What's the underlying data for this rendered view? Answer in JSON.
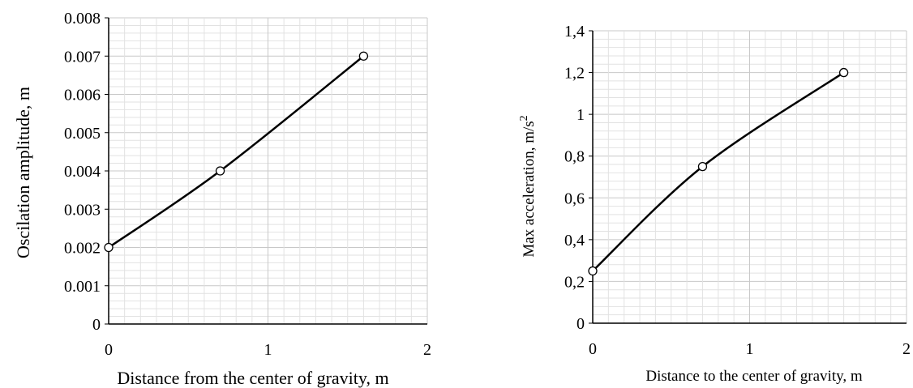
{
  "chart_data": [
    {
      "type": "line",
      "title": "",
      "xlabel": "Distance from the center of gravity, m",
      "ylabel": "Oscilation amplitude, m",
      "xlim": [
        0,
        2
      ],
      "ylim": [
        0,
        0.008
      ],
      "x_ticks": [
        "0",
        "1",
        "2"
      ],
      "y_ticks": [
        "0",
        "0.001",
        "0.002",
        "0.003",
        "0.004",
        "0.005",
        "0.006",
        "0.007",
        "0.008"
      ],
      "grid": true,
      "series": [
        {
          "x": [
            0,
            0.7,
            1.6
          ],
          "y": [
            0.002,
            0.004,
            0.007
          ]
        }
      ]
    },
    {
      "type": "line",
      "title": "",
      "xlabel": "Distance to the center of gravity, m",
      "ylabel": "Max acceleration, m/s",
      "ylabel_sup": "2",
      "xlim": [
        0,
        2
      ],
      "ylim": [
        0,
        1.4
      ],
      "x_ticks": [
        "0",
        "1",
        "2"
      ],
      "y_ticks": [
        "0",
        "0,2",
        "0,4",
        "0,6",
        "0,8",
        "1",
        "1,2",
        "1,4"
      ],
      "grid": true,
      "series": [
        {
          "x": [
            0,
            0.7,
            1.6
          ],
          "y": [
            0.25,
            0.75,
            1.2
          ]
        }
      ]
    }
  ]
}
